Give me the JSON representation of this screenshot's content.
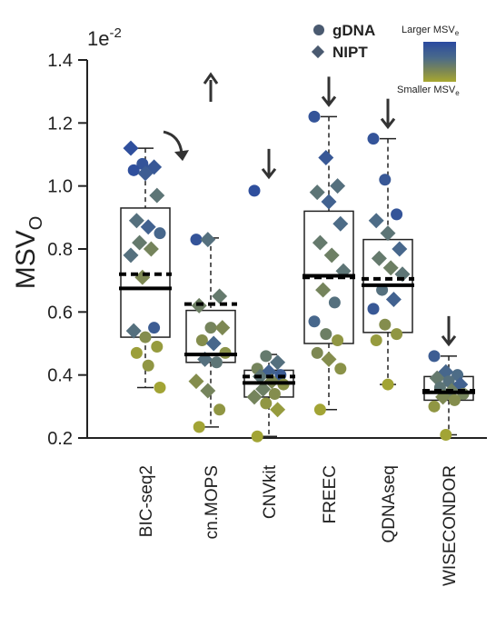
{
  "chart_data": {
    "type": "scatter",
    "title": "",
    "ylabel": "MSV",
    "ylabel_sub": "O",
    "y_exponent_base": "1e",
    "y_exponent_power": "-2",
    "ylim": [
      0.2,
      1.4
    ],
    "yticks": [
      "0.2",
      "0.4",
      "0.6",
      "0.8",
      "1.0",
      "1.2",
      "1.4"
    ],
    "grid": false,
    "categories": [
      "BIC-seq2",
      "cn.MOPS",
      "CNVkit",
      "FREEC",
      "QDNAseq",
      "WISECONDOR"
    ],
    "legend": {
      "placement": "top-right",
      "markers": [
        {
          "label": "gDNA",
          "shape": "circle"
        },
        {
          "label": "NIPT",
          "shape": "diamond"
        }
      ],
      "colorbar_top": "Larger MSV",
      "colorbar_top_sub": "e",
      "colorbar_bottom": "Smaller MSV",
      "colorbar_bottom_sub": "e",
      "colorbar_colors": [
        "#2a4aa0",
        "#4a6a8a",
        "#808a50",
        "#a8a830"
      ]
    },
    "boxes": [
      {
        "q1": 0.52,
        "median": 0.675,
        "mean": 0.72,
        "q3": 0.93,
        "whisker_low": 0.36,
        "whisker_high": 1.12,
        "arrow": "curved-down"
      },
      {
        "q1": 0.44,
        "median": 0.465,
        "mean": 0.625,
        "q3": 0.605,
        "whisker_low": 0.235,
        "whisker_high": 0.835,
        "arrow": "up"
      },
      {
        "q1": 0.33,
        "median": 0.375,
        "mean": 0.395,
        "q3": 0.415,
        "whisker_low": 0.205,
        "whisker_high": 0.465,
        "arrow": "down"
      },
      {
        "q1": 0.5,
        "median": 0.715,
        "mean": 0.71,
        "q3": 0.92,
        "whisker_low": 0.29,
        "whisker_high": 1.22,
        "arrow": "down"
      },
      {
        "q1": 0.535,
        "median": 0.685,
        "mean": 0.705,
        "q3": 0.83,
        "whisker_low": 0.37,
        "whisker_high": 1.15,
        "arrow": "down"
      },
      {
        "q1": 0.32,
        "median": 0.345,
        "mean": 0.35,
        "q3": 0.395,
        "whisker_low": 0.21,
        "whisker_high": 0.46,
        "arrow": "down"
      }
    ],
    "points": [
      [
        {
          "y": 1.12,
          "s": "d",
          "c": 0.95
        },
        {
          "y": 1.07,
          "s": "c",
          "c": 0.9
        },
        {
          "y": 1.06,
          "s": "d",
          "c": 0.85
        },
        {
          "y": 1.05,
          "s": "c",
          "c": 0.95
        },
        {
          "y": 1.04,
          "s": "d",
          "c": 0.8
        },
        {
          "y": 0.97,
          "s": "d",
          "c": 0.55
        },
        {
          "y": 0.89,
          "s": "d",
          "c": 0.6
        },
        {
          "y": 0.87,
          "s": "d",
          "c": 0.75
        },
        {
          "y": 0.85,
          "s": "c",
          "c": 0.7
        },
        {
          "y": 0.82,
          "s": "d",
          "c": 0.5
        },
        {
          "y": 0.8,
          "s": "d",
          "c": 0.4
        },
        {
          "y": 0.78,
          "s": "d",
          "c": 0.6
        },
        {
          "y": 0.71,
          "s": "d",
          "c": 0.35
        },
        {
          "y": 0.55,
          "s": "c",
          "c": 0.8
        },
        {
          "y": 0.54,
          "s": "d",
          "c": 0.6
        },
        {
          "y": 0.52,
          "s": "c",
          "c": 0.3
        },
        {
          "y": 0.49,
          "s": "c",
          "c": 0.15
        },
        {
          "y": 0.47,
          "s": "c",
          "c": 0.1
        },
        {
          "y": 0.43,
          "s": "c",
          "c": 0.2
        },
        {
          "y": 0.36,
          "s": "c",
          "c": 0.05
        }
      ],
      [
        {
          "y": 0.83,
          "s": "c",
          "c": 0.9
        },
        {
          "y": 0.83,
          "s": "d",
          "c": 0.6
        },
        {
          "y": 0.65,
          "s": "d",
          "c": 0.5
        },
        {
          "y": 0.62,
          "s": "d",
          "c": 0.45
        },
        {
          "y": 0.55,
          "s": "c",
          "c": 0.4
        },
        {
          "y": 0.55,
          "s": "d",
          "c": 0.35
        },
        {
          "y": 0.51,
          "s": "c",
          "c": 0.3
        },
        {
          "y": 0.5,
          "s": "d",
          "c": 0.7
        },
        {
          "y": 0.47,
          "s": "c",
          "c": 0.25
        },
        {
          "y": 0.45,
          "s": "d",
          "c": 0.6
        },
        {
          "y": 0.44,
          "s": "c",
          "c": 0.55
        },
        {
          "y": 0.38,
          "s": "d",
          "c": 0.3
        },
        {
          "y": 0.35,
          "s": "d",
          "c": 0.4
        },
        {
          "y": 0.29,
          "s": "c",
          "c": 0.2
        },
        {
          "y": 0.235,
          "s": "c",
          "c": 0.05
        }
      ],
      [
        {
          "y": 0.985,
          "s": "c",
          "c": 0.95
        },
        {
          "y": 0.46,
          "s": "c",
          "c": 0.5
        },
        {
          "y": 0.44,
          "s": "d",
          "c": 0.6
        },
        {
          "y": 0.42,
          "s": "c",
          "c": 0.4
        },
        {
          "y": 0.41,
          "s": "d",
          "c": 0.75
        },
        {
          "y": 0.4,
          "s": "c",
          "c": 0.8
        },
        {
          "y": 0.395,
          "s": "d",
          "c": 0.55
        },
        {
          "y": 0.38,
          "s": "d",
          "c": 0.35
        },
        {
          "y": 0.37,
          "s": "c",
          "c": 0.25
        },
        {
          "y": 0.355,
          "s": "d",
          "c": 0.45
        },
        {
          "y": 0.34,
          "s": "c",
          "c": 0.3
        },
        {
          "y": 0.33,
          "s": "d",
          "c": 0.4
        },
        {
          "y": 0.31,
          "s": "c",
          "c": 0.2
        },
        {
          "y": 0.29,
          "s": "d",
          "c": 0.15
        },
        {
          "y": 0.205,
          "s": "c",
          "c": 0.05
        }
      ],
      [
        {
          "y": 1.22,
          "s": "c",
          "c": 0.9
        },
        {
          "y": 1.09,
          "s": "d",
          "c": 0.85
        },
        {
          "y": 1.0,
          "s": "d",
          "c": 0.6
        },
        {
          "y": 0.98,
          "s": "d",
          "c": 0.55
        },
        {
          "y": 0.95,
          "s": "d",
          "c": 0.75
        },
        {
          "y": 0.88,
          "s": "d",
          "c": 0.65
        },
        {
          "y": 0.82,
          "s": "d",
          "c": 0.5
        },
        {
          "y": 0.78,
          "s": "d",
          "c": 0.45
        },
        {
          "y": 0.73,
          "s": "d",
          "c": 0.55
        },
        {
          "y": 0.67,
          "s": "d",
          "c": 0.4
        },
        {
          "y": 0.63,
          "s": "c",
          "c": 0.6
        },
        {
          "y": 0.57,
          "s": "c",
          "c": 0.7
        },
        {
          "y": 0.53,
          "s": "c",
          "c": 0.45
        },
        {
          "y": 0.51,
          "s": "c",
          "c": 0.2
        },
        {
          "y": 0.47,
          "s": "c",
          "c": 0.35
        },
        {
          "y": 0.45,
          "s": "d",
          "c": 0.3
        },
        {
          "y": 0.42,
          "s": "c",
          "c": 0.25
        },
        {
          "y": 0.29,
          "s": "c",
          "c": 0.05
        }
      ],
      [
        {
          "y": 1.15,
          "s": "c",
          "c": 0.9
        },
        {
          "y": 1.02,
          "s": "c",
          "c": 0.85
        },
        {
          "y": 0.91,
          "s": "c",
          "c": 0.9
        },
        {
          "y": 0.89,
          "s": "d",
          "c": 0.65
        },
        {
          "y": 0.85,
          "s": "d",
          "c": 0.55
        },
        {
          "y": 0.8,
          "s": "d",
          "c": 0.7
        },
        {
          "y": 0.77,
          "s": "d",
          "c": 0.5
        },
        {
          "y": 0.74,
          "s": "d",
          "c": 0.45
        },
        {
          "y": 0.72,
          "s": "d",
          "c": 0.55
        },
        {
          "y": 0.67,
          "s": "c",
          "c": 0.6
        },
        {
          "y": 0.64,
          "s": "d",
          "c": 0.75
        },
        {
          "y": 0.61,
          "s": "c",
          "c": 0.85
        },
        {
          "y": 0.56,
          "s": "c",
          "c": 0.3
        },
        {
          "y": 0.53,
          "s": "c",
          "c": 0.2
        },
        {
          "y": 0.51,
          "s": "c",
          "c": 0.15
        },
        {
          "y": 0.37,
          "s": "c",
          "c": 0.05
        }
      ],
      [
        {
          "y": 0.46,
          "s": "c",
          "c": 0.8
        },
        {
          "y": 0.41,
          "s": "d",
          "c": 0.7
        },
        {
          "y": 0.4,
          "s": "c",
          "c": 0.65
        },
        {
          "y": 0.39,
          "s": "d",
          "c": 0.5
        },
        {
          "y": 0.38,
          "s": "c",
          "c": 0.6
        },
        {
          "y": 0.37,
          "s": "d",
          "c": 0.75
        },
        {
          "y": 0.36,
          "s": "c",
          "c": 0.55
        },
        {
          "y": 0.35,
          "s": "d",
          "c": 0.45
        },
        {
          "y": 0.34,
          "s": "c",
          "c": 0.4
        },
        {
          "y": 0.33,
          "s": "d",
          "c": 0.35
        },
        {
          "y": 0.32,
          "s": "c",
          "c": 0.3
        },
        {
          "y": 0.3,
          "s": "c",
          "c": 0.2
        },
        {
          "y": 0.21,
          "s": "c",
          "c": 0.05
        }
      ]
    ]
  }
}
